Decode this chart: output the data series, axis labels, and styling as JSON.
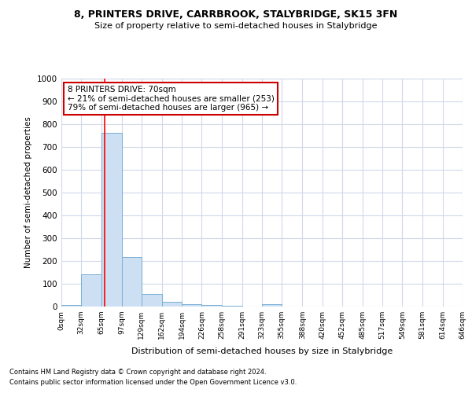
{
  "title": "8, PRINTERS DRIVE, CARRBROOK, STALYBRIDGE, SK15 3FN",
  "subtitle": "Size of property relative to semi-detached houses in Stalybridge",
  "xlabel": "Distribution of semi-detached houses by size in Stalybridge",
  "ylabel": "Number of semi-detached properties",
  "bar_color": "#ccdff3",
  "bar_edge_color": "#7aafd4",
  "annotation_line1": "8 PRINTERS DRIVE: 70sqm",
  "annotation_line2": "← 21% of semi-detached houses are smaller (253)",
  "annotation_line3": "79% of semi-detached houses are larger (965) →",
  "annotation_box_color": "#ffffff",
  "annotation_box_edge_color": "#cc0000",
  "red_line_x": 70,
  "bin_edges": [
    0,
    32,
    65,
    97,
    129,
    162,
    194,
    226,
    258,
    291,
    323,
    355,
    388,
    420,
    452,
    485,
    517,
    549,
    581,
    614,
    646
  ],
  "bin_labels": [
    "0sqm",
    "32sqm",
    "65sqm",
    "97sqm",
    "129sqm",
    "162sqm",
    "194sqm",
    "226sqm",
    "258sqm",
    "291sqm",
    "323sqm",
    "355sqm",
    "388sqm",
    "420sqm",
    "452sqm",
    "485sqm",
    "517sqm",
    "549sqm",
    "581sqm",
    "614sqm",
    "646sqm"
  ],
  "bar_heights": [
    7,
    143,
    762,
    218,
    55,
    22,
    12,
    7,
    4,
    0,
    11,
    0,
    0,
    0,
    0,
    0,
    0,
    0,
    0,
    0
  ],
  "ylim": [
    0,
    1000
  ],
  "yticks": [
    0,
    100,
    200,
    300,
    400,
    500,
    600,
    700,
    800,
    900,
    1000
  ],
  "footnote1": "Contains HM Land Registry data © Crown copyright and database right 2024.",
  "footnote2": "Contains public sector information licensed under the Open Government Licence v3.0.",
  "background_color": "#ffffff",
  "grid_color": "#d0d8ea"
}
